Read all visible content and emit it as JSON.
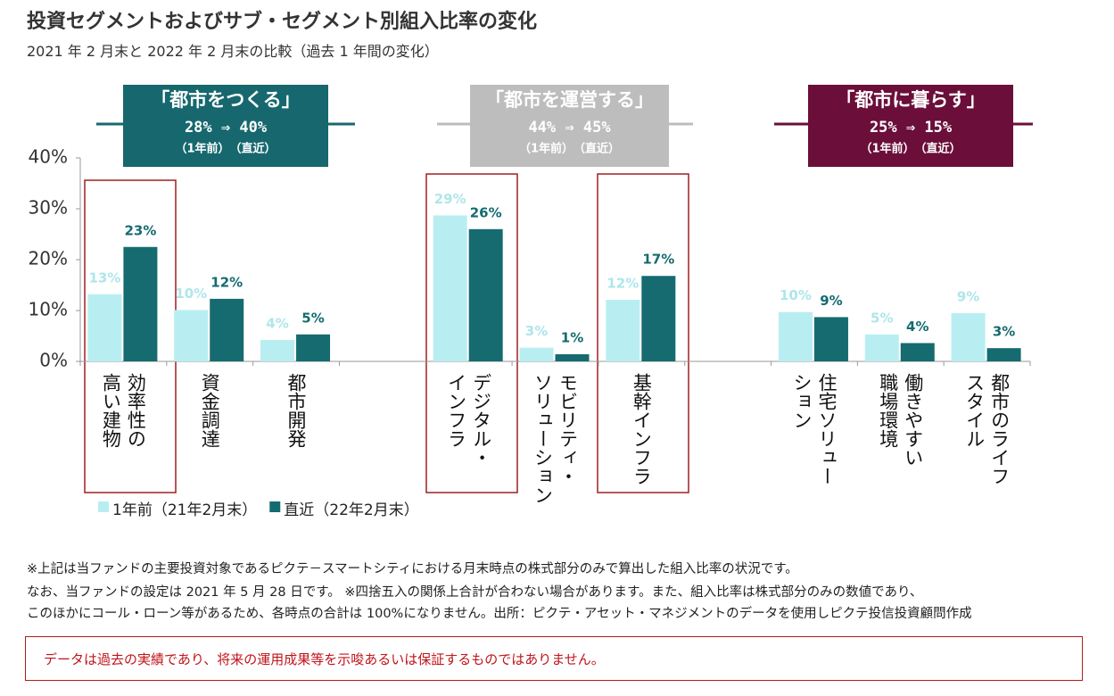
{
  "chart_data": {
    "type": "bar",
    "title": "投資セグメントおよびサブ・セグメント別組入比率の変化",
    "subtitle": "2021 年 2 月末と 2022 年 2 月末の比較（過去 1 年間の変化）",
    "segments": [
      {
        "label": "「都市をつくる」",
        "change": "28% ⇒ 40%",
        "note": "（1年前）　（直近）",
        "color": "#17686e"
      },
      {
        "label": "「都市を運営する」",
        "change": "44% ⇒ 45%",
        "note": "（1年前）　（直近）",
        "color": "#bdbdbd"
      },
      {
        "label": "「都市に暮らす」",
        "change": "25% ⇒ 15%",
        "note": "（1年前）　（直近）",
        "color": "#6b0f3a"
      }
    ],
    "categories": [
      "効率性の\n高い建物",
      "資金調達",
      "都市開発",
      null,
      "デジタル・\nインフラ",
      "モビリティ・\nソリューション",
      "基幹インフラ",
      null,
      "住宅ソリュー\nション",
      "働きやすい\n職場環境",
      "都市のライフ\nスタイル"
    ],
    "series": [
      {
        "name": "1年前（21年2月末）",
        "color": "#b8eef2",
        "values": [
          13.2,
          10.1,
          4.2,
          null,
          28.7,
          2.7,
          12.1,
          null,
          9.7,
          5.3,
          9.5
        ],
        "value_labels": [
          "13%",
          "10%",
          "4%",
          null,
          "29%",
          "3%",
          "12%",
          null,
          "10%",
          "5%",
          "9%"
        ]
      },
      {
        "name": "直近（22年2月末）",
        "color": "#156b70",
        "values": [
          22.5,
          12.3,
          5.3,
          null,
          26.0,
          1.4,
          16.8,
          null,
          8.7,
          3.6,
          2.6
        ],
        "value_labels": [
          "23%",
          "12%",
          "5%",
          null,
          "26%",
          "1%",
          "17%",
          null,
          "9%",
          "4%",
          "3%"
        ]
      }
    ],
    "ylim": [
      0,
      40
    ],
    "yticks": [
      {
        "value": 0,
        "label": "0%"
      },
      {
        "value": 10,
        "label": "10%"
      },
      {
        "value": 20,
        "label": "20%"
      },
      {
        "value": 30,
        "label": "30%"
      },
      {
        "value": 40,
        "label": "40%"
      }
    ]
  },
  "notes": [
    "※上記は当ファンドの主要投資対象であるピクテ－スマートシティにおける月末時点の株式部分のみで算出した組入比率の状況です。",
    "なお、当ファンドの設定は 2021 年 5 月 28 日です。 ※四捨五入の関係上合計が合わない場合があります。また、組入比率は株式部分のみの数値であり、",
    "このほかにコール・ローン等があるため、各時点の合計は 100%になりません。出所：ピクテ・アセット・マネジメントのデータを使用しピクテ投信投資顧問作成"
  ],
  "disclaimer": "データは過去の実績であり、将来の運用成果等を示唆あるいは保証するものではありません。"
}
